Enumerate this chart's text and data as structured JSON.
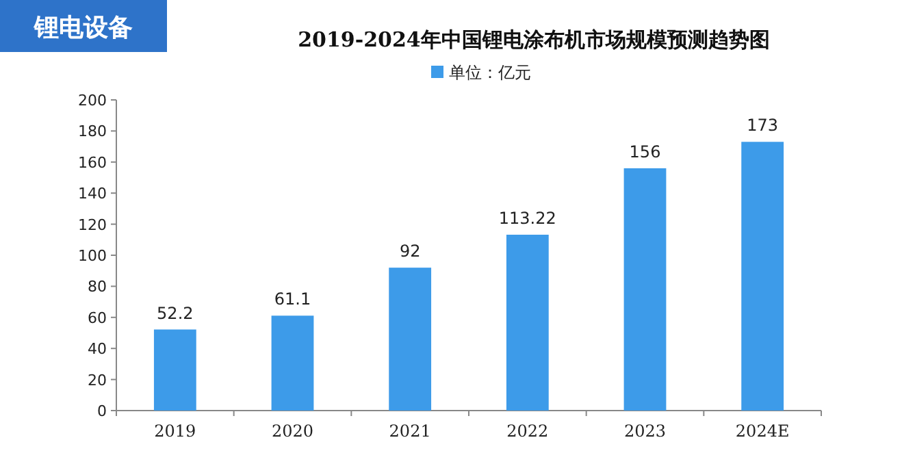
{
  "chart_data": {
    "type": "bar",
    "title": "2019-2024年中国锂电涂布机市场规模预测趋势图",
    "annotations": [
      "锂电设备"
    ],
    "categories": [
      "2019",
      "2020",
      "2021",
      "2022",
      "2023",
      "2024E"
    ],
    "series": [
      {
        "name": "单位：亿元",
        "color": "#3d9be9",
        "values": [
          52.2,
          61.1,
          92,
          113.22,
          156,
          173
        ]
      }
    ],
    "ylim": [
      0,
      200
    ],
    "yticks": [
      0,
      20,
      40,
      60,
      80,
      100,
      120,
      140,
      160,
      180,
      200
    ],
    "data_labels": true,
    "legend": "top",
    "grid": false
  }
}
